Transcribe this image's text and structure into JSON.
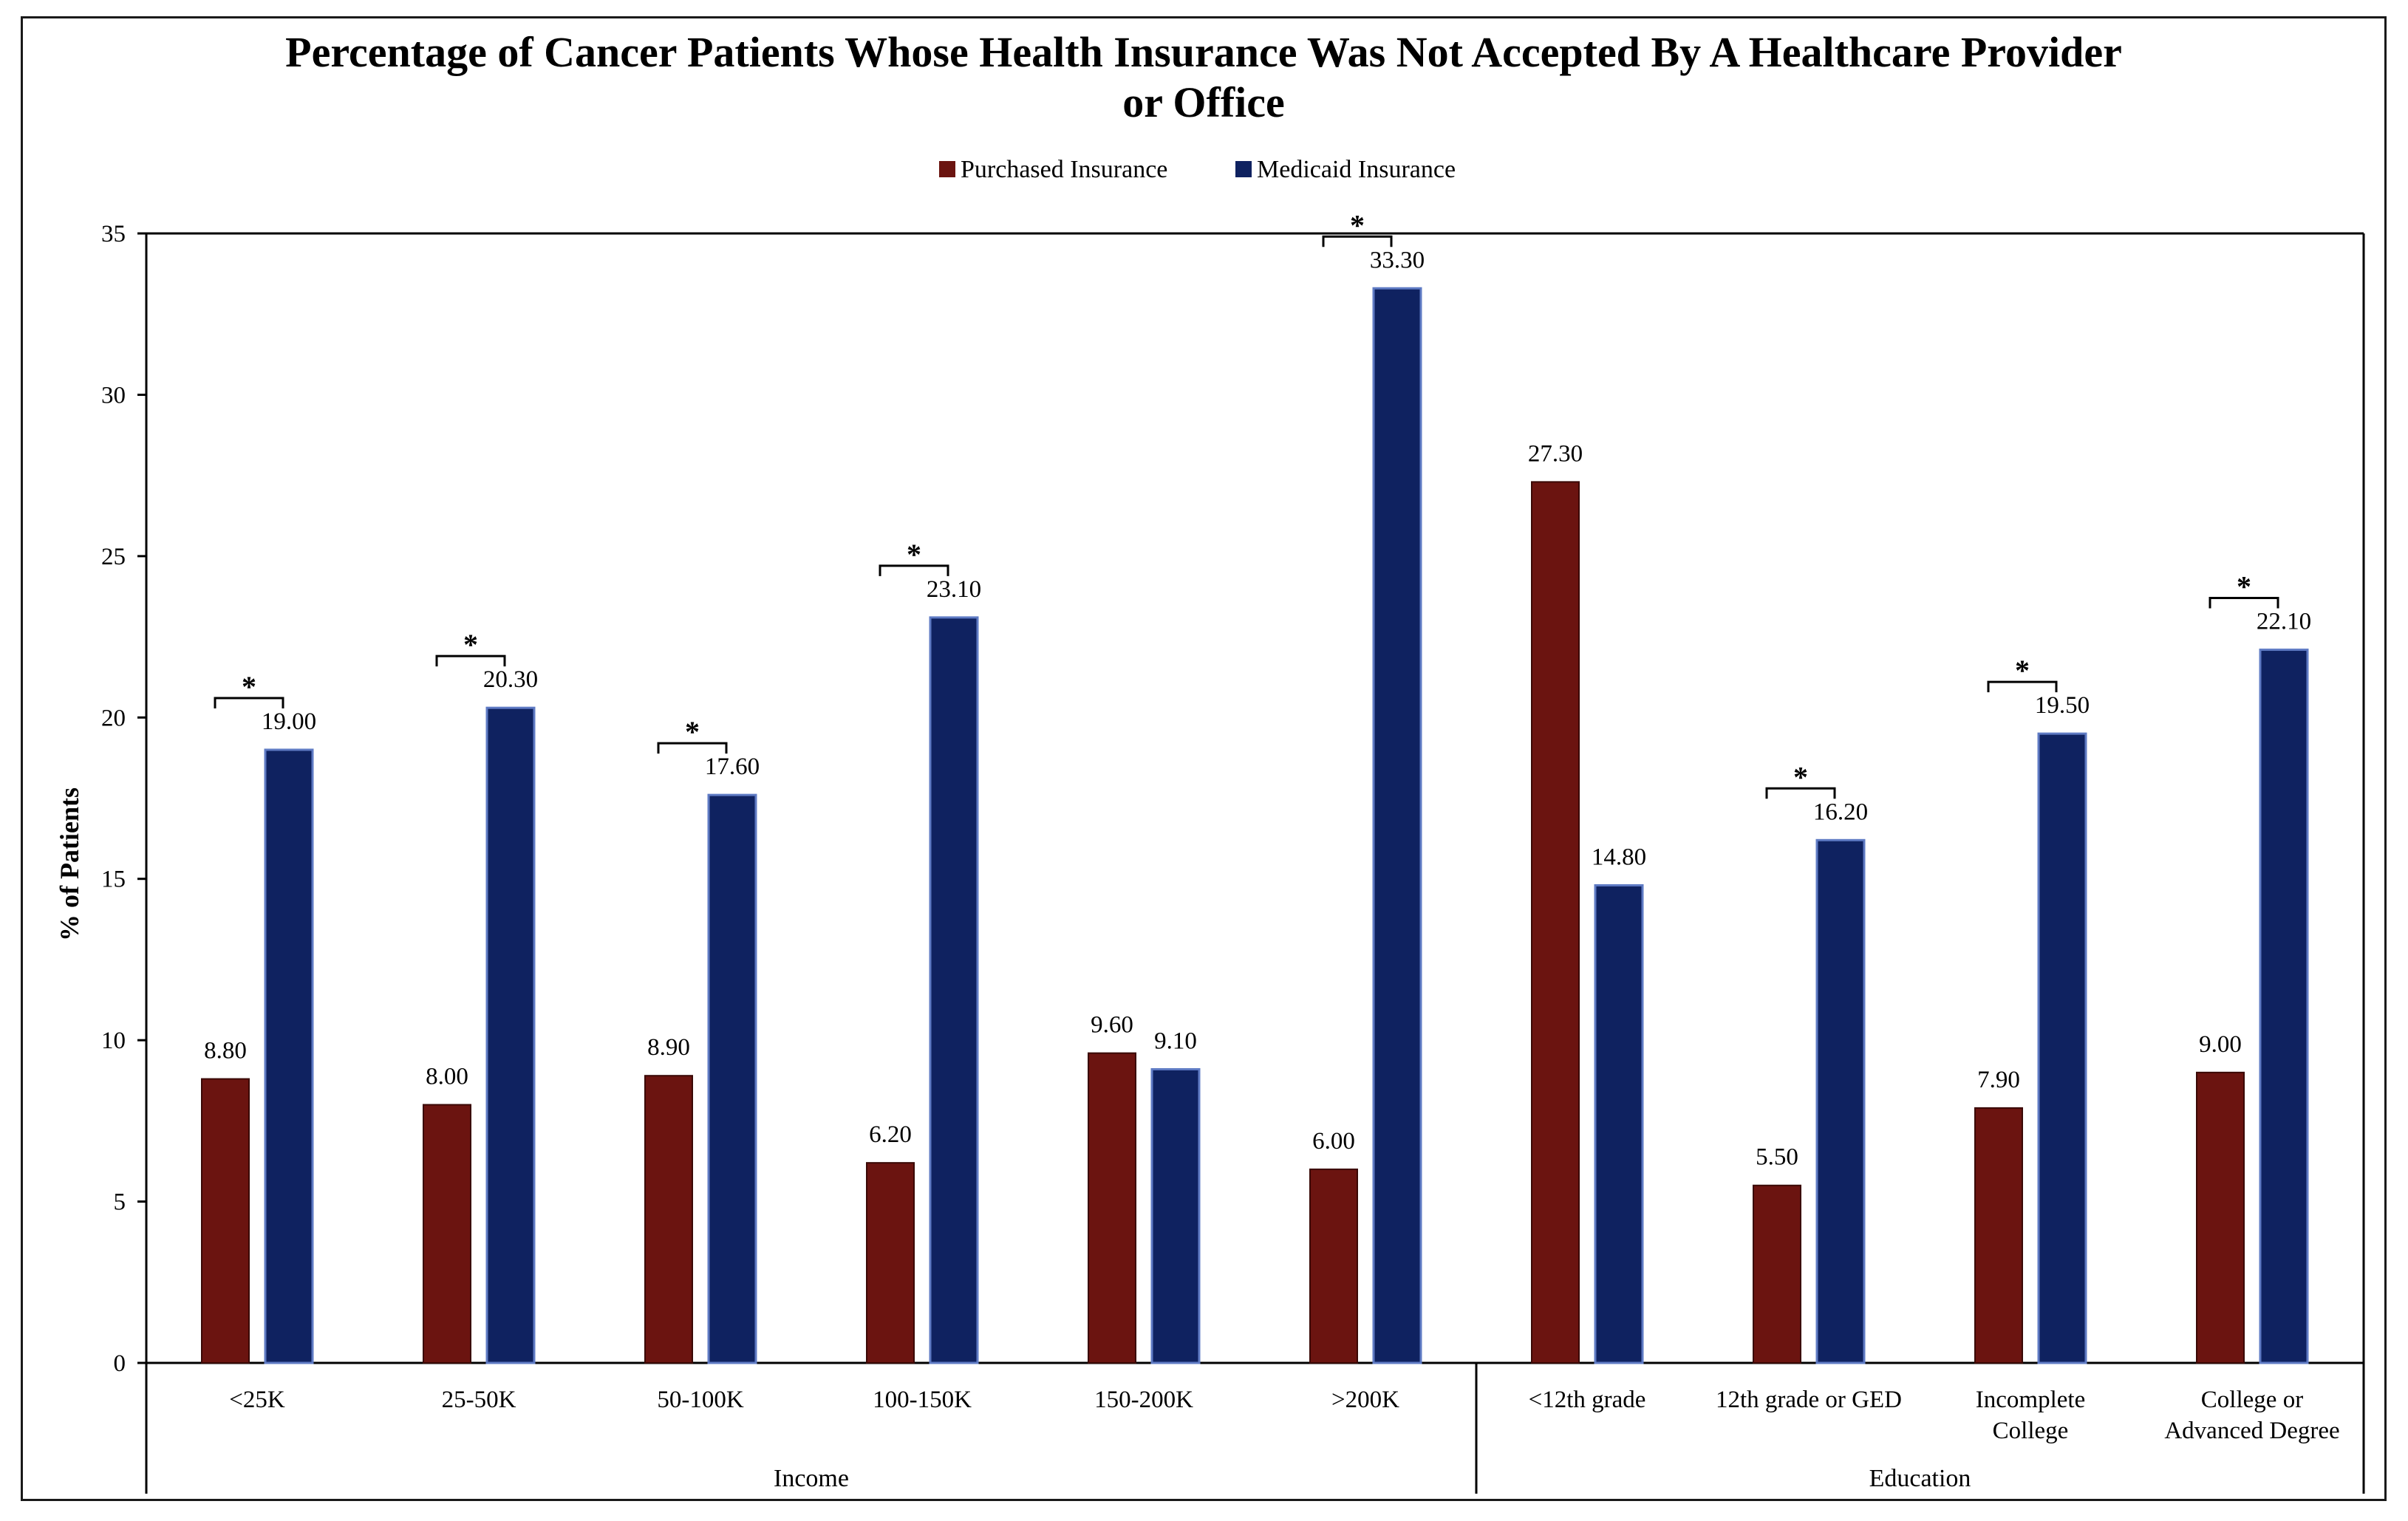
{
  "chart_data": {
    "type": "bar",
    "title_lines": [
      "Percentage of Cancer Patients Whose Health Insurance Was Not Accepted By A Healthcare Provider",
      "or Office"
    ],
    "ylabel": "% of Patients",
    "xlabel": "",
    "ylim": [
      0,
      35
    ],
    "yticks": [
      0,
      5,
      10,
      15,
      20,
      25,
      30,
      35
    ],
    "ytick_labels": [
      "0",
      "5",
      "10",
      "15",
      "20",
      "25",
      "30",
      "35"
    ],
    "legend_position": "top-center",
    "grid": false,
    "colors": {
      "purchased": "#6b1410",
      "medicaid": "#0f2260",
      "axis": "#000000"
    },
    "categories": [
      {
        "label_lines": [
          "<25K"
        ],
        "group": 0,
        "significant": true
      },
      {
        "label_lines": [
          "25-50K"
        ],
        "group": 0,
        "significant": true
      },
      {
        "label_lines": [
          "50-100K"
        ],
        "group": 0,
        "significant": true
      },
      {
        "label_lines": [
          "100-150K"
        ],
        "group": 0,
        "significant": true
      },
      {
        "label_lines": [
          "150-200K"
        ],
        "group": 0,
        "significant": false
      },
      {
        "label_lines": [
          ">200K"
        ],
        "group": 0,
        "significant": true
      },
      {
        "label_lines": [
          "<12th grade"
        ],
        "group": 1,
        "significant": false
      },
      {
        "label_lines": [
          "12th grade or GED"
        ],
        "group": 1,
        "significant": true
      },
      {
        "label_lines": [
          "Incomplete",
          "College"
        ],
        "group": 1,
        "significant": true
      },
      {
        "label_lines": [
          "College or",
          "Advanced Degree"
        ],
        "group": 1,
        "significant": true
      }
    ],
    "groups": [
      "Income",
      "Education"
    ],
    "significance_marker": "*",
    "series": [
      {
        "name": "Purchased Insurance",
        "values": [
          8.8,
          8.0,
          8.9,
          6.2,
          9.6,
          6.0,
          27.3,
          5.5,
          7.9,
          9.0
        ],
        "value_labels": [
          "8.80",
          "8.00",
          "8.90",
          "6.20",
          "9.60",
          "6.00",
          "27.30",
          "5.50",
          "7.90",
          "9.00"
        ]
      },
      {
        "name": "Medicaid Insurance",
        "values": [
          19.0,
          20.3,
          17.6,
          23.1,
          9.1,
          33.3,
          14.8,
          16.2,
          19.5,
          22.1
        ],
        "value_labels": [
          "19.00",
          "20.30",
          "17.60",
          "23.10",
          "9.10",
          "33.30",
          "14.80",
          "16.20",
          "19.50",
          "22.10"
        ]
      }
    ]
  }
}
